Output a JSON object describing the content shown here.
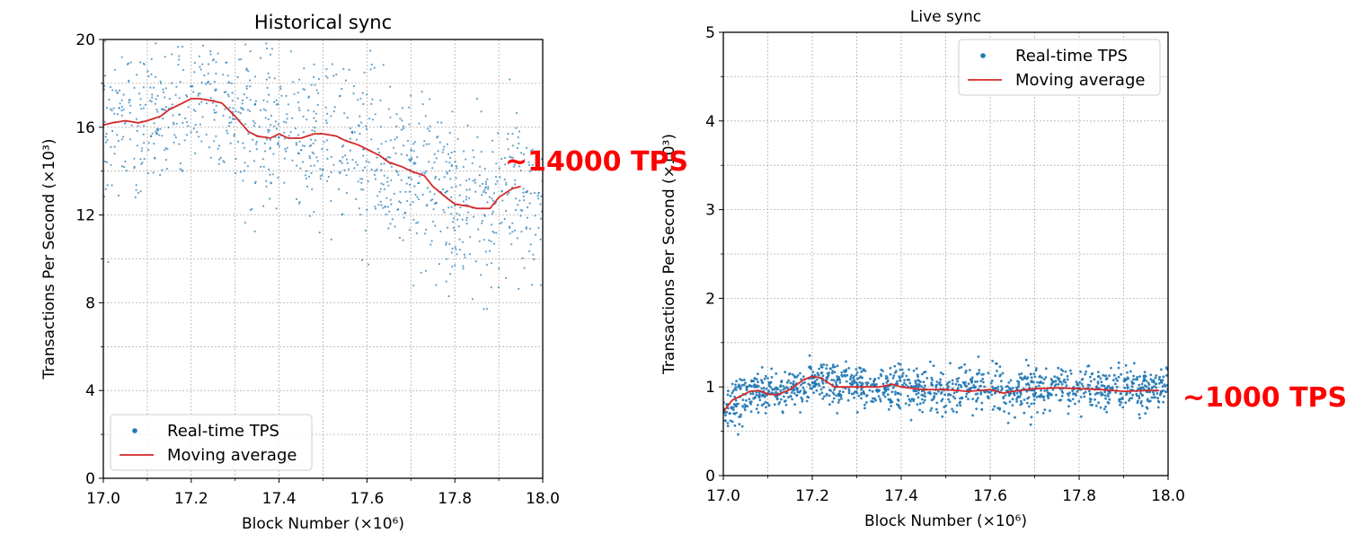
{
  "colors": {
    "scatter": "#1f77b4",
    "moving_average": "#d62728",
    "annotation": "#ff0000",
    "grid": "#b0b0b0"
  },
  "chart_data": [
    {
      "type": "scatter",
      "title": "Historical sync",
      "xlabel": "Block Number (×10⁶)",
      "ylabel": "Transactions Per Second (×10³)",
      "xlim": [
        17.0,
        18.0
      ],
      "ylim": [
        0,
        20
      ],
      "xticks": [
        "17.0",
        "17.2",
        "17.4",
        "17.6",
        "17.8",
        "18.0"
      ],
      "yticks": [
        "0",
        "4",
        "8",
        "12",
        "16",
        "20"
      ],
      "grid": true,
      "legend_position": "bottom-left",
      "legend": [
        "Real-time TPS",
        "Moving average"
      ],
      "annotation": "~14000 TPS",
      "series": [
        {
          "name": "Real-time TPS",
          "style": "points",
          "spread": 1.8,
          "x": [
            17.0,
            17.05,
            17.1,
            17.15,
            17.2,
            17.25,
            17.3,
            17.35,
            17.4,
            17.45,
            17.5,
            17.55,
            17.6,
            17.65,
            17.7,
            17.75,
            17.8,
            17.85,
            17.9,
            17.95,
            18.0
          ],
          "y": [
            16.1,
            16.2,
            16.3,
            16.4,
            17.3,
            17.2,
            16.4,
            15.5,
            15.6,
            15.5,
            15.6,
            15.3,
            15.0,
            14.4,
            14.0,
            13.3,
            12.4,
            12.3,
            12.7,
            13.3,
            12.5
          ]
        },
        {
          "name": "Moving average",
          "style": "line",
          "x": [
            17.0,
            17.02,
            17.05,
            17.08,
            17.1,
            17.13,
            17.15,
            17.18,
            17.2,
            17.22,
            17.25,
            17.27,
            17.3,
            17.33,
            17.35,
            17.38,
            17.4,
            17.42,
            17.45,
            17.48,
            17.5,
            17.53,
            17.55,
            17.58,
            17.6,
            17.63,
            17.65,
            17.68,
            17.7,
            17.73,
            17.75,
            17.78,
            17.8,
            17.83,
            17.85,
            17.88,
            17.9,
            17.93,
            17.95
          ],
          "y": [
            16.1,
            16.2,
            16.3,
            16.2,
            16.3,
            16.5,
            16.8,
            17.1,
            17.3,
            17.3,
            17.2,
            17.1,
            16.5,
            15.8,
            15.6,
            15.5,
            15.7,
            15.5,
            15.5,
            15.7,
            15.7,
            15.6,
            15.4,
            15.2,
            15.0,
            14.7,
            14.4,
            14.2,
            14.0,
            13.8,
            13.3,
            12.8,
            12.5,
            12.4,
            12.3,
            12.3,
            12.8,
            13.2,
            13.3
          ]
        }
      ]
    },
    {
      "type": "scatter",
      "title": "Live sync",
      "xlabel": "Block Number (×10⁶)",
      "ylabel": "Transactions Per Second (×10³)",
      "xlim": [
        17.0,
        18.0
      ],
      "ylim": [
        0,
        5
      ],
      "xticks": [
        "17.0",
        "17.2",
        "17.4",
        "17.6",
        "17.8",
        "18.0"
      ],
      "yticks": [
        "0",
        "1",
        "2",
        "3",
        "4",
        "5"
      ],
      "grid": true,
      "legend_position": "top-right",
      "legend": [
        "Real-time TPS",
        "Moving average"
      ],
      "annotation": "~1000 TPS",
      "series": [
        {
          "name": "Real-time TPS",
          "style": "points",
          "spread": 0.12,
          "x": [
            17.0,
            17.05,
            17.1,
            17.15,
            17.2,
            17.25,
            17.3,
            17.35,
            17.4,
            17.45,
            17.5,
            17.55,
            17.6,
            17.65,
            17.7,
            17.75,
            17.8,
            17.85,
            17.9,
            17.95,
            18.0
          ],
          "y": [
            0.75,
            0.92,
            0.95,
            0.95,
            1.12,
            1.0,
            1.0,
            1.0,
            1.0,
            0.97,
            0.97,
            0.96,
            0.97,
            0.94,
            0.98,
            0.99,
            0.98,
            0.97,
            0.96,
            0.97,
            0.96
          ]
        },
        {
          "name": "Moving average",
          "style": "line",
          "x": [
            17.0,
            17.02,
            17.04,
            17.06,
            17.08,
            17.1,
            17.12,
            17.15,
            17.18,
            17.2,
            17.22,
            17.25,
            17.3,
            17.35,
            17.38,
            17.4,
            17.45,
            17.5,
            17.55,
            17.6,
            17.63,
            17.65,
            17.7,
            17.75,
            17.8,
            17.85,
            17.9,
            17.95,
            17.98
          ],
          "y": [
            0.72,
            0.85,
            0.9,
            0.95,
            0.96,
            0.92,
            0.91,
            0.97,
            1.08,
            1.12,
            1.1,
            1.0,
            1.0,
            1.0,
            1.03,
            1.0,
            0.97,
            0.97,
            0.95,
            0.97,
            0.93,
            0.95,
            0.98,
            0.99,
            0.98,
            0.97,
            0.95,
            0.96,
            0.96
          ]
        }
      ]
    }
  ]
}
